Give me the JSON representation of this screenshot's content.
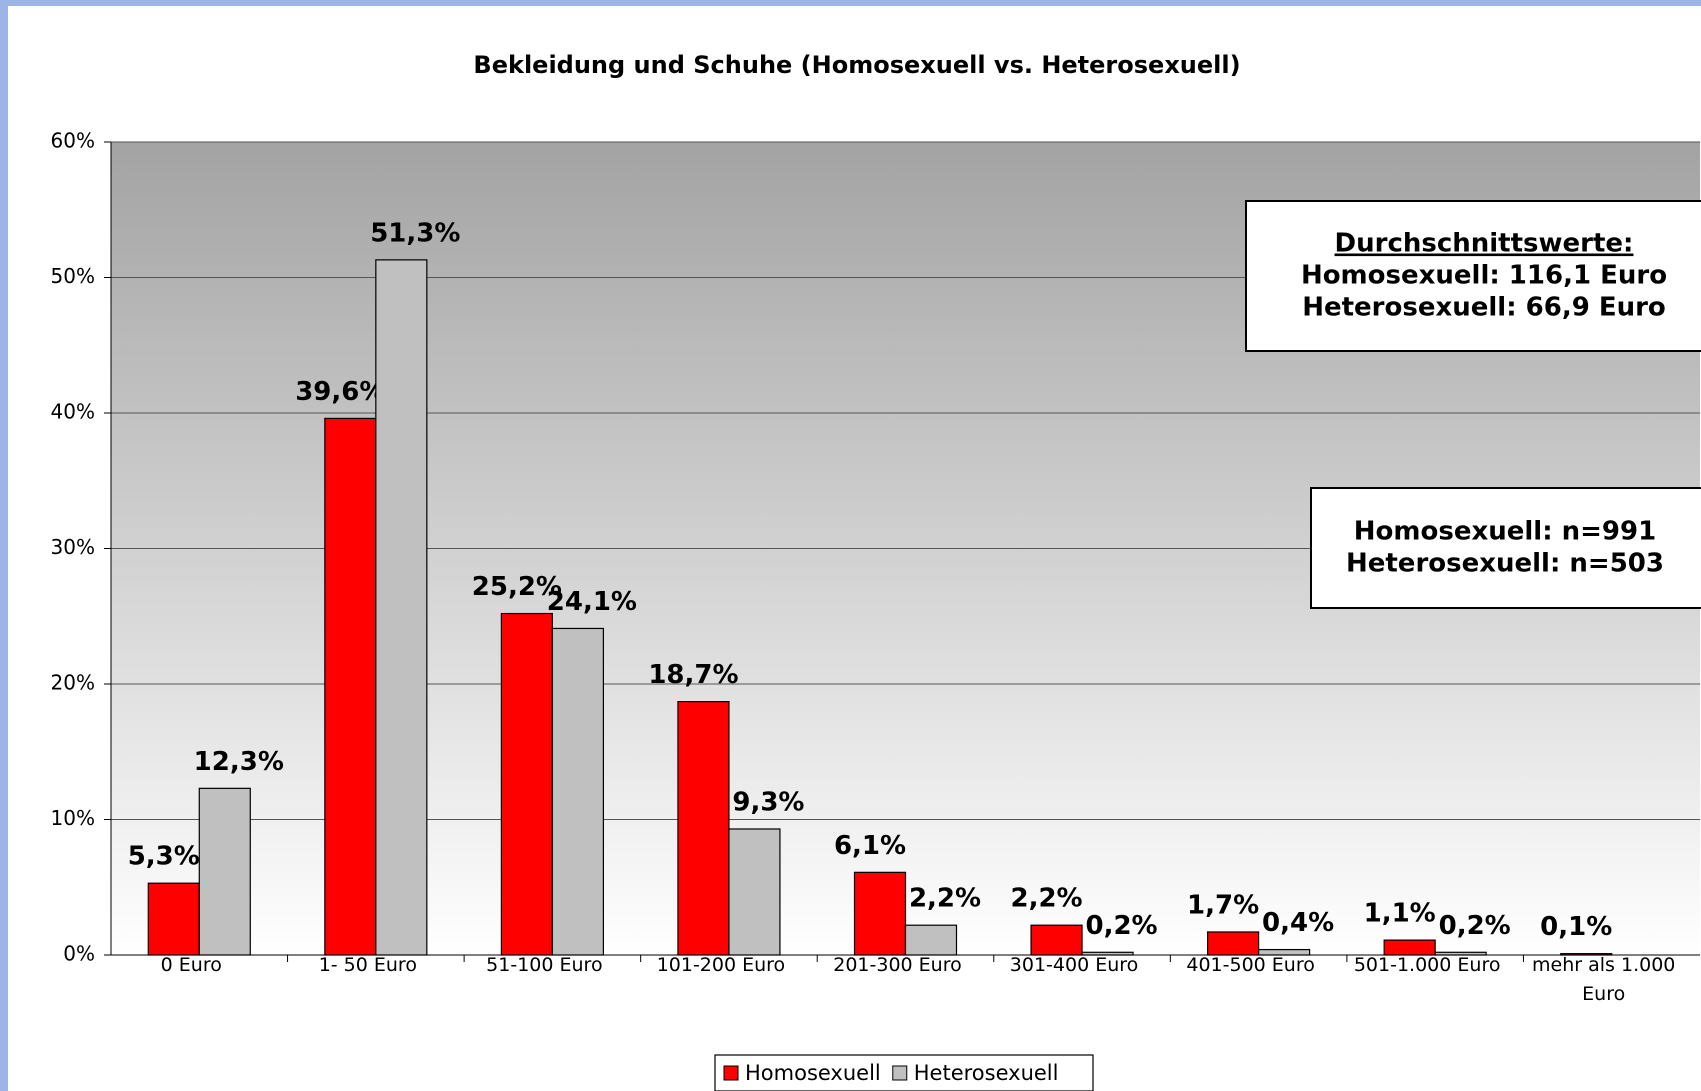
{
  "chart_data": {
    "type": "bar",
    "title": "Bekleidung und Schuhe (Homosexuell vs. Heterosexuell)",
    "categories": [
      "0 Euro",
      "1- 50 Euro",
      "51-100 Euro",
      "101-200 Euro",
      "201-300 Euro",
      "301-400 Euro",
      "401-500 Euro",
      "501-1.000 Euro",
      "mehr als 1.000 Euro"
    ],
    "series": [
      {
        "name": "Homosexuell",
        "color": "#ff0000",
        "values": [
          5.3,
          39.6,
          25.2,
          18.7,
          6.1,
          2.2,
          1.7,
          1.1,
          0.1
        ],
        "value_labels": [
          "5,3%",
          "39,6%",
          "25,2%",
          "18,7%",
          "6,1%",
          "2,2%",
          "1,7%",
          "1,1%",
          "0,1%"
        ]
      },
      {
        "name": "Heterosexuell",
        "color": "#c0c0c0",
        "values": [
          12.3,
          51.3,
          24.1,
          9.3,
          2.2,
          0.2,
          0.4,
          0.2,
          0
        ],
        "value_labels": [
          "12,3%",
          "51,3%",
          "24,1%",
          "9,3%",
          "2,2%",
          "0,2%",
          "0,4%",
          "0,2%",
          null
        ]
      }
    ],
    "ylim": [
      0,
      60
    ],
    "yticks": [
      {
        "value": 0,
        "label": "0%"
      },
      {
        "value": 10,
        "label": "10%"
      },
      {
        "value": 20,
        "label": "20%"
      },
      {
        "value": 30,
        "label": "30%"
      },
      {
        "value": 40,
        "label": "40%"
      },
      {
        "value": 50,
        "label": "50%"
      },
      {
        "value": 60,
        "label": "60%"
      }
    ],
    "grid": true,
    "legend": "bottom",
    "annotations": [
      [
        "Durchschnittswerte:",
        "Homosexuell: 116,1 Euro",
        "Heterosexuell: 66,9 Euro"
      ],
      [
        "Homosexuell: n=991",
        "Heterosexuell: n=503"
      ]
    ]
  }
}
